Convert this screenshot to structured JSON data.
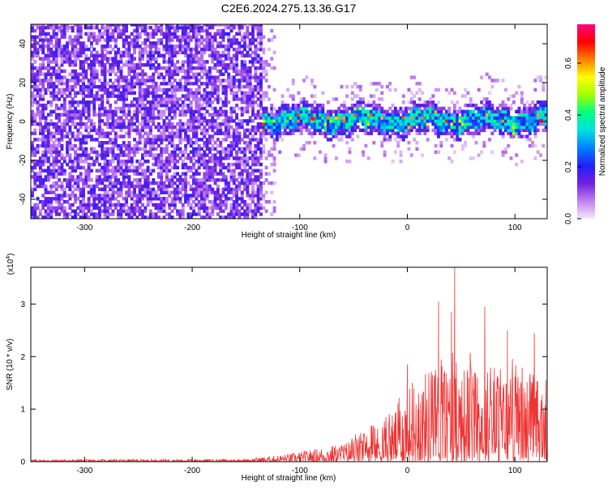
{
  "title": "C2E6.2024.275.13.36.G17",
  "colors": {
    "snr_line": "#ee3333",
    "cbar_stops": [
      "#f4e8f8",
      "#c080f0",
      "#7020e0",
      "#2020ff",
      "#0080ff",
      "#00e0e0",
      "#00ff80",
      "#a0ff00",
      "#ffff00",
      "#ff8000",
      "#ff0000",
      "#ff0080"
    ]
  },
  "chart_data": [
    {
      "type": "heatmap",
      "xlabel": "Height of straight line (km)",
      "ylabel": "Frequency (Hz)",
      "xlim": [
        -350,
        130
      ],
      "ylim": [
        -50,
        50
      ],
      "xticks": [
        -300,
        -200,
        -100,
        0,
        100
      ],
      "xtick_labels": [
        "-300",
        "-200",
        "-100",
        "0",
        "100"
      ],
      "yticks": [
        -40,
        -20,
        0,
        20,
        40
      ],
      "ytick_labels": [
        "-40",
        "-20",
        "0",
        "20",
        "40"
      ],
      "colorbar": {
        "label": "Normalized spectral amplitude",
        "range": [
          0,
          0.75
        ],
        "ticks": [
          0,
          0.2,
          0.4,
          0.6
        ],
        "tick_labels": [
          "0.0",
          "0.2",
          "0.4",
          "0.6"
        ]
      },
      "noise_region_x": [
        -350,
        -135
      ],
      "signal_band": {
        "x": [
          -137,
          130
        ],
        "center_hz": 0,
        "halfwidth_hz": 8
      }
    },
    {
      "type": "line",
      "xlabel": "Height of straight line (km)",
      "ylabel": "SNR (10 * v/v)",
      "scale_label": "(x10",
      "scale_exponent": "4",
      "scale_close": ")",
      "xlim": [
        -350,
        130
      ],
      "ylim": [
        0,
        3.7
      ],
      "xticks": [
        -300,
        -200,
        -100,
        0,
        100
      ],
      "xtick_labels": [
        "-300",
        "-200",
        "-100",
        "0",
        "100"
      ],
      "yticks": [
        0,
        1,
        2,
        3
      ],
      "ytick_labels": [
        "0",
        "1",
        "2",
        "3"
      ],
      "envelope": [
        {
          "x": -350,
          "y": 0.04
        },
        {
          "x": -150,
          "y": 0.05
        },
        {
          "x": -110,
          "y": 0.15
        },
        {
          "x": -60,
          "y": 0.35
        },
        {
          "x": -20,
          "y": 0.75
        },
        {
          "x": 0,
          "y": 1.4
        },
        {
          "x": 20,
          "y": 1.8
        },
        {
          "x": 40,
          "y": 1.9
        },
        {
          "x": 80,
          "y": 1.8
        },
        {
          "x": 130,
          "y": 1.6
        }
      ],
      "peaks": [
        {
          "x": 0,
          "y": 1.85
        },
        {
          "x": 29,
          "y": 3.05
        },
        {
          "x": 41,
          "y": 2.85
        },
        {
          "x": 44,
          "y": 3.7
        },
        {
          "x": 72,
          "y": 2.95
        },
        {
          "x": 93,
          "y": 2.5
        },
        {
          "x": 118,
          "y": 2.45
        }
      ]
    }
  ]
}
